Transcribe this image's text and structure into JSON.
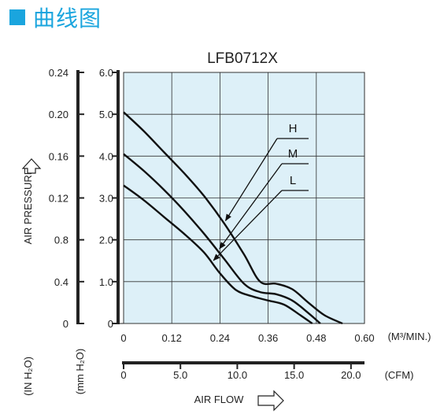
{
  "heading": {
    "text": "曲线图",
    "accent_color": "#1aa5de"
  },
  "chart_data": {
    "type": "line",
    "title": "LFB0712X",
    "plot_background": "#ddf0f8",
    "grid": true,
    "xlim": [
      0,
      0.6
    ],
    "ylim_mmH2O": [
      0,
      6.0
    ],
    "x_axis_m3min": {
      "ticks": [
        0,
        0.12,
        0.24,
        0.36,
        0.48,
        0.6
      ],
      "tick_labels": [
        "0",
        "0.12",
        "0.24",
        "0.36",
        "0.48",
        "0.60"
      ],
      "unit_label": "(M³/MIN.)"
    },
    "x_axis_cfm": {
      "ticks": [
        0,
        5.0,
        10.0,
        15.0,
        20.0
      ],
      "tick_labels": [
        "0",
        "5.0",
        "10.0",
        "15.0",
        "20.0"
      ],
      "unit_label": "(CFM)"
    },
    "xlabel": "AIR FLOW",
    "y_axis_mmH2O": {
      "ticks": [
        0,
        1.0,
        2.0,
        3.0,
        4.0,
        5.0,
        6.0
      ],
      "tick_labels": [
        "0",
        "1.0",
        "2.0",
        "3.0",
        "4.0",
        "5.0",
        "6.0"
      ],
      "unit_label": "(mm H₂O)"
    },
    "y_axis_inH2O": {
      "tick_labels": [
        "0",
        "0.4",
        "0.8",
        "0.12",
        "0.16",
        "0.20",
        "0.24"
      ],
      "unit_label": "(IN H₂O)"
    },
    "ylabel": "AIR PRESSURE",
    "series": [
      {
        "name": "H",
        "x": [
          0,
          0.05,
          0.1,
          0.15,
          0.2,
          0.25,
          0.3,
          0.34,
          0.38,
          0.42,
          0.46,
          0.5,
          0.545
        ],
        "y": [
          5.05,
          4.6,
          4.1,
          3.6,
          3.05,
          2.4,
          1.65,
          1.0,
          0.95,
          0.82,
          0.5,
          0.2,
          0
        ]
      },
      {
        "name": "M",
        "x": [
          0,
          0.05,
          0.1,
          0.15,
          0.2,
          0.25,
          0.3,
          0.34,
          0.38,
          0.42,
          0.46,
          0.49
        ],
        "y": [
          4.05,
          3.65,
          3.2,
          2.7,
          2.15,
          1.55,
          0.95,
          0.75,
          0.7,
          0.55,
          0.25,
          0
        ]
      },
      {
        "name": "L",
        "x": [
          0,
          0.05,
          0.1,
          0.15,
          0.2,
          0.24,
          0.28,
          0.32,
          0.36,
          0.4,
          0.44,
          0.47
        ],
        "y": [
          3.3,
          2.95,
          2.55,
          2.15,
          1.7,
          1.2,
          0.8,
          0.65,
          0.55,
          0.45,
          0.2,
          0
        ]
      }
    ]
  }
}
